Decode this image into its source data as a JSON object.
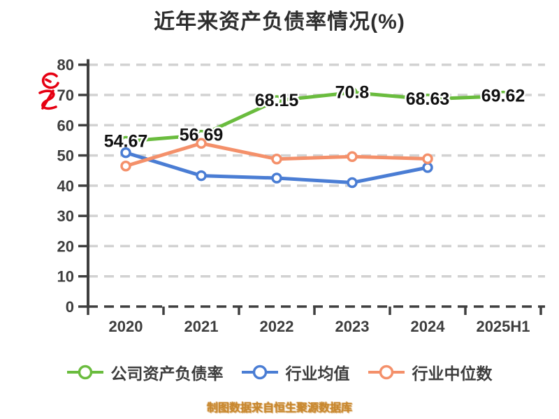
{
  "title": "近年来资产负债率情况(%)",
  "footer": "制图数据来自恒生聚源数据库",
  "colors": {
    "axis": "#3f3f3f",
    "grid": "#d2d2d2",
    "title": "#2e2e2e",
    "tick_text": "#3d3d3d",
    "point_label": "#111111",
    "footer": "#c8872e",
    "watermark_red": "#e60012"
  },
  "chart_data": {
    "type": "line",
    "title": "近年来资产负债率情况(%)",
    "categories": [
      "2020",
      "2021",
      "2022",
      "2023",
      "2024",
      "2025H1"
    ],
    "series": [
      {
        "name": "公司资产负债率",
        "color": "#6abc3e",
        "values": [
          54.67,
          56.69,
          68.15,
          70.8,
          68.63,
          69.62
        ],
        "point_labels": [
          "54.67",
          "56.69",
          "68.15",
          "70.8",
          "68.63",
          "69.62"
        ],
        "show_labels": true
      },
      {
        "name": "行业均值",
        "color": "#4a7dd4",
        "values": [
          50.9,
          43.3,
          42.5,
          41.0,
          46.0,
          null
        ],
        "show_labels": false
      },
      {
        "name": "行业中位数",
        "color": "#f4906a",
        "values": [
          46.5,
          54.0,
          48.8,
          49.6,
          48.9,
          null
        ],
        "show_labels": false
      }
    ],
    "ylim": [
      0,
      80
    ],
    "yticks": [
      0,
      10,
      20,
      30,
      40,
      50,
      60,
      70,
      80
    ],
    "grid": "horizontal-dashed",
    "legend_position": "bottom",
    "marker_style": "hollow-circle"
  }
}
